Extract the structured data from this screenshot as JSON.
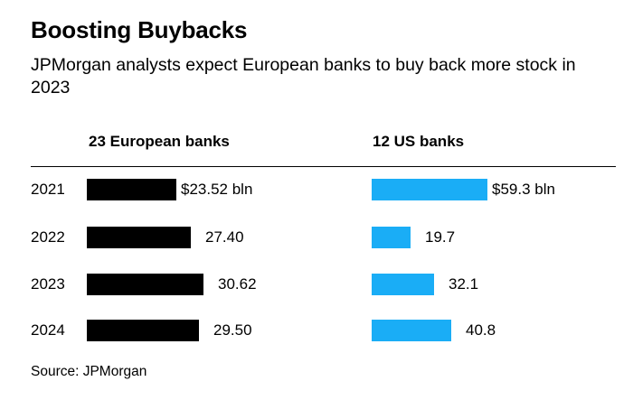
{
  "title": "Boosting Buybacks",
  "subtitle": "JPMorgan analysts expect European banks to buy back more stock in 2023",
  "source": "Source: JPMorgan",
  "colors": {
    "europe": "#000000",
    "us": "#1aadf6"
  },
  "chart_data": {
    "type": "bar",
    "orientation": "horizontal",
    "categories": [
      "2021",
      "2022",
      "2023",
      "2024"
    ],
    "series": [
      {
        "name": "23 European banks",
        "values": [
          23.52,
          27.4,
          30.62,
          29.5
        ],
        "labels": [
          "$23.52 bln",
          "27.40",
          "30.62",
          "29.50"
        ]
      },
      {
        "name": "12 US banks",
        "values": [
          59.3,
          19.7,
          32.1,
          40.8
        ],
        "labels": [
          "$59.3 bln",
          "19.7",
          "32.1",
          "40.8"
        ]
      }
    ]
  }
}
